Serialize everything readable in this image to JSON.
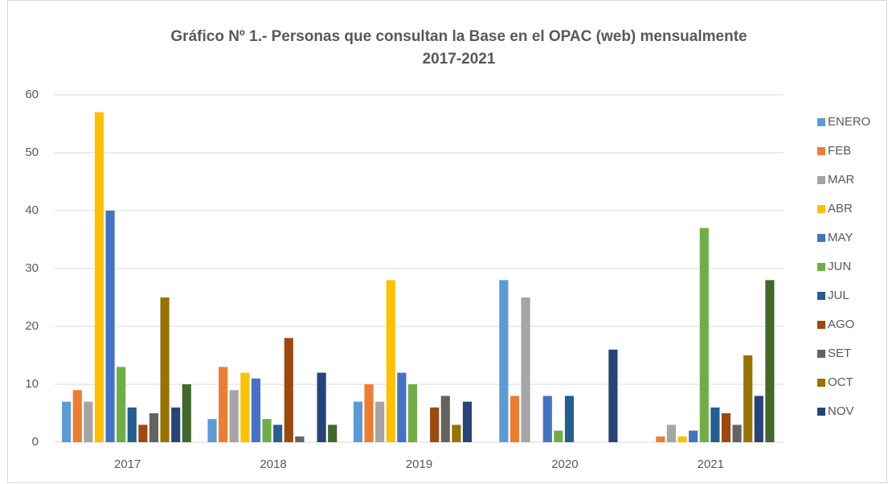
{
  "chart_data": {
    "type": "bar",
    "title": [
      "Gráfico Nº 1.- Personas que consultan la Base en el OPAC (web) mensualmente",
      "2017-2021"
    ],
    "categories": [
      "2017",
      "2018",
      "2019",
      "2020",
      "2021"
    ],
    "series": [
      {
        "name": "ENERO",
        "color": "#5b9bd5",
        "values": [
          7,
          4,
          7,
          28,
          0
        ]
      },
      {
        "name": "FEB",
        "color": "#ed7d31",
        "values": [
          9,
          13,
          10,
          8,
          1
        ]
      },
      {
        "name": "MAR",
        "color": "#a5a5a5",
        "values": [
          7,
          9,
          7,
          25,
          3
        ]
      },
      {
        "name": "ABR",
        "color": "#ffc000",
        "values": [
          57,
          12,
          28,
          0,
          1
        ]
      },
      {
        "name": "MAY",
        "color": "#4472c4",
        "values": [
          40,
          11,
          12,
          8,
          2
        ]
      },
      {
        "name": "JUN",
        "color": "#70ad47",
        "values": [
          13,
          4,
          10,
          2,
          37
        ]
      },
      {
        "name": "JUL",
        "color": "#255e91",
        "values": [
          6,
          3,
          0,
          8,
          6
        ]
      },
      {
        "name": "AGO",
        "color": "#9e480e",
        "values": [
          3,
          18,
          6,
          0,
          5
        ]
      },
      {
        "name": "SET",
        "color": "#636363",
        "values": [
          5,
          1,
          8,
          0,
          3
        ]
      },
      {
        "name": "OCT",
        "color": "#997300",
        "values": [
          25,
          0,
          3,
          0,
          15
        ]
      },
      {
        "name": "NOV",
        "color": "#264478",
        "values": [
          6,
          12,
          7,
          16,
          8
        ]
      },
      {
        "color": "#43682b",
        "values": [
          10,
          3,
          0,
          0,
          28
        ]
      }
    ],
    "ylim": [
      0,
      60
    ],
    "yticks": [
      0,
      10,
      20,
      30,
      40,
      50,
      60
    ],
    "grid": true,
    "legend": "right"
  }
}
